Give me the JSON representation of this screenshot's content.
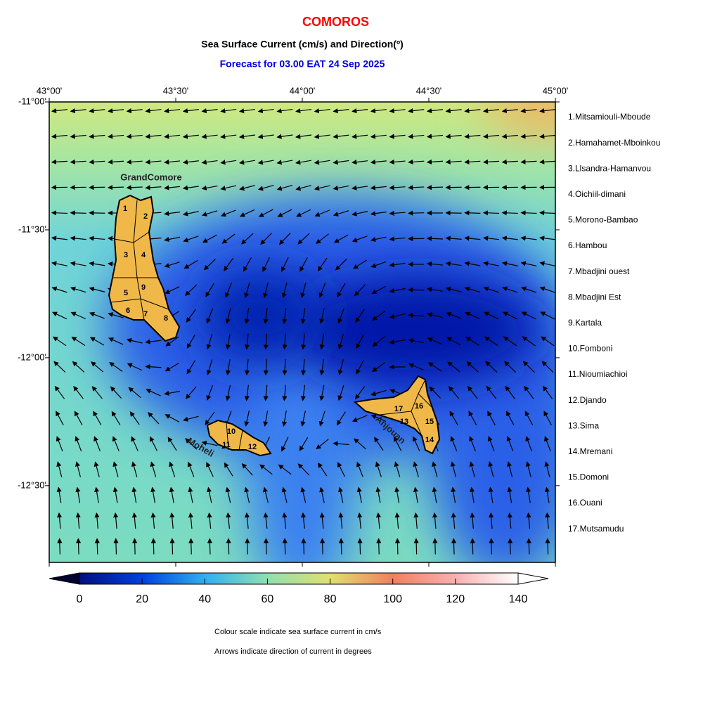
{
  "header": {
    "title": "COMOROS",
    "subtitle": "Sea Surface Current (cm/s) and Direction(º)",
    "forecast": "Forecast for  03.00 EAT 24 Sep 2025"
  },
  "map": {
    "xlim": [
      43,
      45
    ],
    "ylim": [
      -12.8,
      -11
    ],
    "xticks": [
      {
        "value": 43,
        "label": "43°00'"
      },
      {
        "value": 43.5,
        "label": "43°30'"
      },
      {
        "value": 44,
        "label": "44°00'"
      },
      {
        "value": 44.5,
        "label": "44°30'"
      },
      {
        "value": 45,
        "label": "45°00'"
      }
    ],
    "yticks": [
      {
        "value": -11,
        "label": "-11°00'"
      },
      {
        "value": -11.5,
        "label": "-11°30'"
      },
      {
        "value": -12,
        "label": "-12°00'"
      },
      {
        "value": -12.5,
        "label": "-12°30'"
      }
    ],
    "islands": [
      "GrandComore",
      "Moheli",
      "Anjouan"
    ],
    "district_numbers": [
      "1",
      "2",
      "3",
      "4",
      "5",
      "6",
      "7",
      "8",
      "9",
      "10",
      "11",
      "12",
      "13",
      "14",
      "15",
      "16",
      "17"
    ],
    "districts": [
      "1.Mitsamiouli-Mboude",
      "2.Hamahamet-Mboinkou",
      "3.Llsandra-Hamanvou",
      "4.Oichiil-dimani",
      "5.Morono-Bambao",
      "6.Hambou",
      "7.Mbadjini ouest",
      "8.Mbadjini Est",
      "9.Kartala",
      "10.Fomboni",
      "11.Nioumiachioi",
      "12.Djando",
      "13.Sima",
      "14.Mremani",
      "15.Domoni",
      "16.Ouani",
      "17.Mutsamudu"
    ]
  },
  "colorbar": {
    "lim": [
      0,
      140
    ],
    "ticks": [
      0,
      20,
      40,
      60,
      80,
      100,
      120,
      140
    ]
  },
  "notes": [
    "Colour scale indicate sea surface current in cm/s",
    "Arrows indicate direction of current in degrees"
  ]
}
